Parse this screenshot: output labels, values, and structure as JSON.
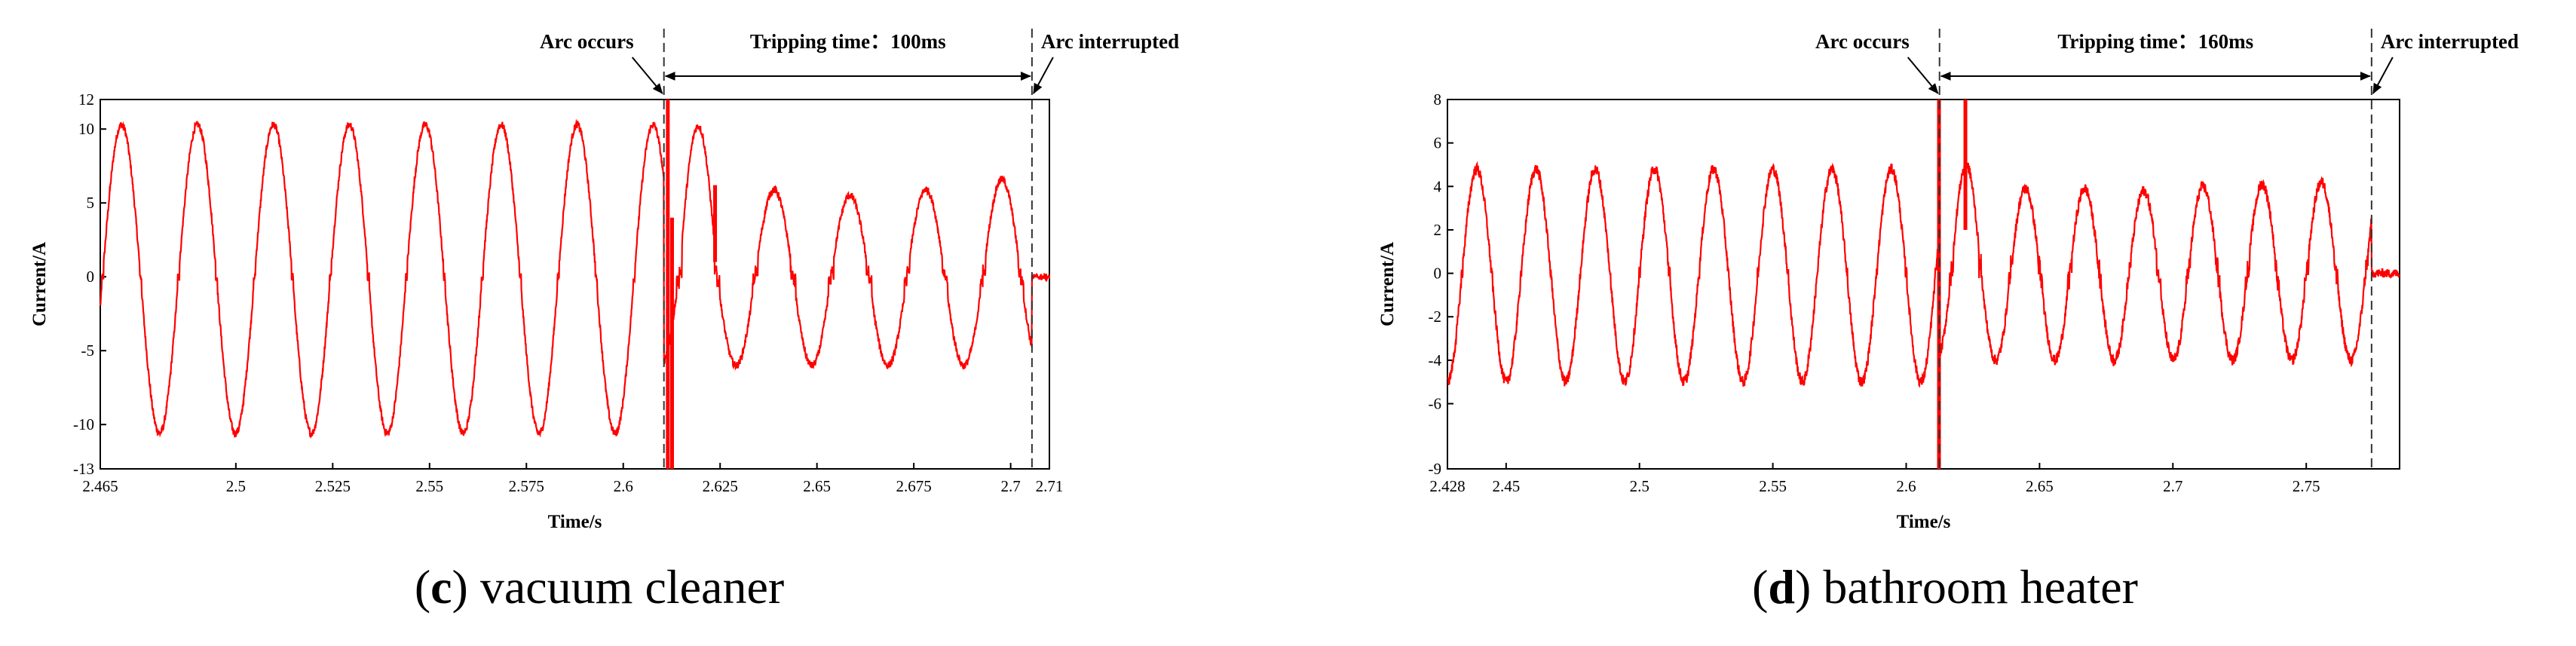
{
  "chart_data": [
    {
      "type": "line",
      "caption_letter": "c",
      "caption_text": " vacuum cleaner",
      "xlabel": "Time/s",
      "ylabel": "Current/A",
      "xlim": [
        2.465,
        2.71
      ],
      "ylim": [
        -13,
        12
      ],
      "xticks": [
        {
          "value": 2.465,
          "label": "2.465"
        },
        {
          "value": 2.5,
          "label": "2.5"
        },
        {
          "value": 2.525,
          "label": "2.525"
        },
        {
          "value": 2.55,
          "label": "2.55"
        },
        {
          "value": 2.575,
          "label": "2.575"
        },
        {
          "value": 2.6,
          "label": "2.6"
        },
        {
          "value": 2.625,
          "label": "2.625"
        },
        {
          "value": 2.65,
          "label": "2.65"
        },
        {
          "value": 2.675,
          "label": "2.675"
        },
        {
          "value": 2.7,
          "label": "2.7"
        },
        {
          "value": 2.71,
          "label": "2.71"
        }
      ],
      "yticks": [
        {
          "value": 12,
          "label": "12"
        },
        {
          "value": 10,
          "label": "10"
        },
        {
          "value": 5,
          "label": "5"
        },
        {
          "value": 0,
          "label": "0"
        },
        {
          "value": -5,
          "label": "-5"
        },
        {
          "value": -10,
          "label": "-10"
        },
        {
          "value": -13,
          "label": "-13"
        }
      ],
      "events": [
        {
          "time": 2.6105,
          "label": "Arc occurs"
        },
        {
          "time": 2.7055,
          "label": "Arc interrupted"
        }
      ],
      "tripping_label": "Tripping time：100ms",
      "series": [
        {
          "color": "#ff0000",
          "waveform": {
            "pre_arc": {
              "from": 2.465,
              "to": 2.6105,
              "period": 0.0196,
              "first_peak": 2.4705,
              "peak": 10.3,
              "trough": -10.6
            },
            "arc": {
              "from": 2.6105,
              "to": 2.7055,
              "period": 0.0196,
              "peaks": [
                10.2,
                5.9,
                5.5,
                5.9,
                6.6
              ],
              "trough": -6.0
            },
            "post": {
              "from": 2.7055,
              "to": 2.71,
              "value": 0.0
            }
          },
          "spikes": [
            {
              "time": 2.6115,
              "low": -13,
              "high": 12
            },
            {
              "time": 2.6126,
              "low": -13,
              "high": 4
            },
            {
              "time": 2.6237,
              "low": 1,
              "high": 6.2
            }
          ]
        }
      ]
    },
    {
      "type": "line",
      "caption_letter": "d",
      "caption_text": " bathroom heater",
      "xlabel": "Time/s",
      "ylabel": "Current/A",
      "xlim": [
        2.428,
        2.785
      ],
      "ylim": [
        -9,
        8
      ],
      "xticks": [
        {
          "value": 2.428,
          "label": "2.428"
        },
        {
          "value": 2.45,
          "label": "2.45"
        },
        {
          "value": 2.5,
          "label": "2.5"
        },
        {
          "value": 2.55,
          "label": "2.55"
        },
        {
          "value": 2.6,
          "label": "2.6"
        },
        {
          "value": 2.65,
          "label": "2.65"
        },
        {
          "value": 2.7,
          "label": "2.7"
        },
        {
          "value": 2.75,
          "label": "2.75"
        }
      ],
      "yticks": [
        {
          "value": 8,
          "label": "8"
        },
        {
          "value": 6,
          "label": "6"
        },
        {
          "value": 4,
          "label": "4"
        },
        {
          "value": 2,
          "label": "2"
        },
        {
          "value": 0,
          "label": "0"
        },
        {
          "value": -2,
          "label": "-2"
        },
        {
          "value": -4,
          "label": "-4"
        },
        {
          "value": -6,
          "label": "-6"
        },
        {
          "value": -9,
          "label": "-9"
        }
      ],
      "events": [
        {
          "time": 2.6125,
          "label": "Arc occurs"
        },
        {
          "time": 2.7745,
          "label": "Arc interrupted"
        }
      ],
      "tripping_label": "Tripping time：160ms",
      "series": [
        {
          "color": "#ff0000",
          "waveform": {
            "pre_arc": {
              "from": 2.428,
              "to": 2.6125,
              "period": 0.0222,
              "first_peak": 2.439,
              "peak": 4.8,
              "trough": -5.0
            },
            "arc": {
              "from": 2.6125,
              "to": 2.7745,
              "period": 0.0222,
              "peaks": [
                5.0,
                3.9,
                3.9,
                3.8,
                4.0,
                4.1,
                4.2,
                4.2
              ],
              "trough": -4.0
            },
            "post": {
              "from": 2.7745,
              "to": 2.785,
              "value": 0.0
            }
          },
          "spikes": [
            {
              "time": 2.6123,
              "low": -9,
              "high": 8
            },
            {
              "time": 2.6222,
              "low": 2,
              "high": 8
            }
          ]
        }
      ]
    }
  ]
}
